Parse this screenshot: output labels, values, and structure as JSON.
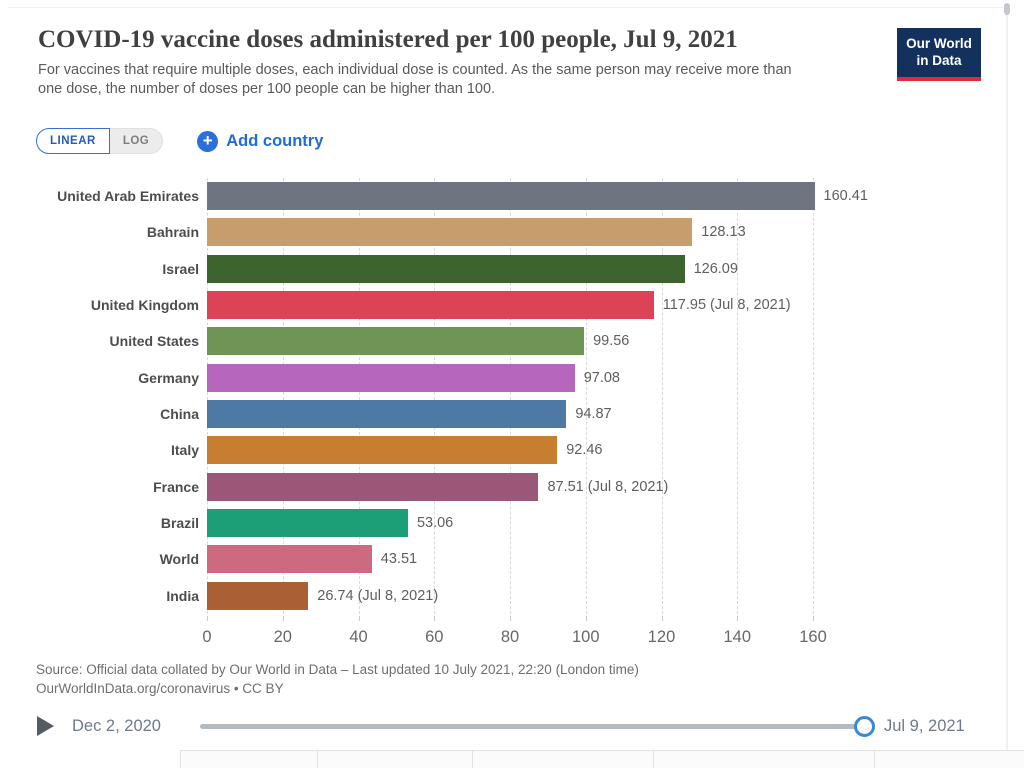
{
  "header": {
    "title": "COVID-19 vaccine doses administered per 100 people, Jul 9, 2021",
    "subtitle": "For vaccines that require multiple doses, each individual dose is counted. As the same person may receive more than one dose, the number of doses per 100 people can be higher than 100.",
    "logo": {
      "line1": "Our World",
      "line2": "in Data",
      "bg_color": "#14305c",
      "stripe_color": "#e02b35"
    }
  },
  "controls": {
    "linear_label": "LINEAR",
    "log_label": "LOG",
    "add_country_label": "Add country",
    "accent_blue": "#1d6cd8"
  },
  "chart_data": {
    "type": "bar",
    "orientation": "horizontal",
    "title": "COVID-19 vaccine doses administered per 100 people, Jul 9, 2021",
    "date_label": "Jul 9, 2021",
    "categories": [
      "United Arab Emirates",
      "Bahrain",
      "Israel",
      "United Kingdom",
      "United States",
      "Germany",
      "China",
      "Italy",
      "France",
      "Brazil",
      "World",
      "India"
    ],
    "values": [
      160.41,
      128.13,
      126.09,
      117.95,
      99.56,
      97.08,
      94.87,
      92.46,
      87.51,
      53.06,
      43.51,
      26.74
    ],
    "value_labels": [
      "160.41",
      "128.13",
      "126.09",
      "117.95 (Jul 8, 2021)",
      "99.56",
      "97.08",
      "94.87",
      "92.46",
      "87.51 (Jul 8, 2021)",
      "53.06",
      "43.51",
      "26.74 (Jul 8, 2021)"
    ],
    "bar_colors": [
      "#6e7581",
      "#c89d6d",
      "#3d632f",
      "#dc4357",
      "#6e9456",
      "#b766bd",
      "#4d79a4",
      "#c87e30",
      "#9a5777",
      "#1c9e77",
      "#cd6a80",
      "#aa5f34"
    ],
    "x_ticks": [
      0,
      20,
      40,
      60,
      80,
      100,
      120,
      140,
      160
    ],
    "xlim": [
      0,
      160
    ],
    "xlabel": "",
    "ylabel": "",
    "grid": "dashed-vertical",
    "legend": "none"
  },
  "footer": {
    "source_line1": "Source: Official data collated by Our World in Data – Last updated 10 July 2021, 22:20 (London time)",
    "source_line2": "OurWorldInData.org/coronavirus • CC BY"
  },
  "timeline": {
    "start_date": "Dec 2, 2020",
    "end_date": "Jul 9, 2021"
  }
}
